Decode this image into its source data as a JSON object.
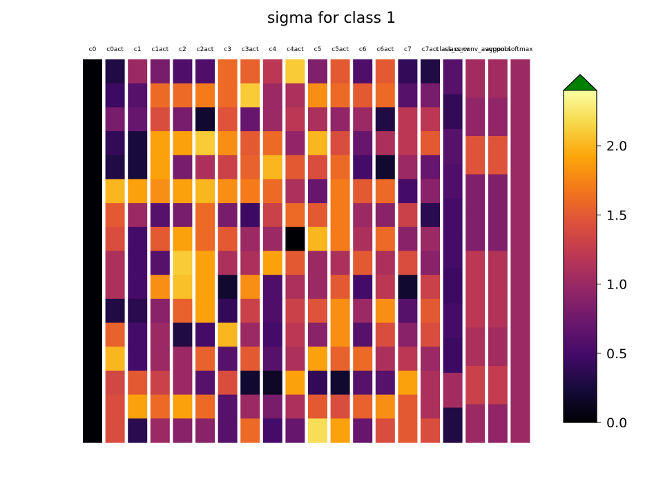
{
  "chart_data": {
    "type": "heatmap",
    "title": "sigma for class 1",
    "colormap": "inferno",
    "clim": [
      0,
      2.4
    ],
    "colorbar": {
      "ticks": [
        0.0,
        0.5,
        1.0,
        1.5,
        2.0
      ],
      "tick_labels": [
        "0.0",
        "0.5",
        "1.0",
        "1.5",
        "2.0"
      ],
      "extend": "max",
      "over_color": "#008000"
    },
    "columns": [
      {
        "label": "c0",
        "values": [
          0,
          0,
          0,
          0,
          0,
          0,
          0,
          0,
          0,
          0,
          0,
          0,
          0,
          0,
          0,
          0
        ]
      },
      {
        "label": "c0act",
        "values": [
          0.3,
          0.45,
          0.8,
          0.4,
          0.3,
          2.0,
          1.5,
          1.4,
          1.1,
          1.1,
          0.3,
          1.55,
          2.0,
          1.35,
          1.4,
          1.4
        ]
      },
      {
        "label": "c1",
        "values": [
          1.0,
          0.6,
          0.7,
          0.25,
          0.25,
          1.9,
          1.0,
          0.5,
          0.5,
          0.5,
          0.35,
          0.5,
          0.5,
          1.5,
          1.9,
          0.35
        ]
      },
      {
        "label": "c1act",
        "values": [
          0.8,
          1.6,
          1.4,
          1.9,
          1.9,
          1.8,
          0.6,
          1.5,
          0.6,
          1.8,
          0.9,
          1.0,
          1.0,
          1.3,
          1.6,
          1.0
        ]
      },
      {
        "label": "c2",
        "values": [
          0.55,
          1.6,
          0.8,
          1.9,
          0.8,
          1.9,
          0.8,
          1.9,
          2.1,
          2.05,
          1.55,
          0.3,
          1.0,
          1.0,
          1.9,
          0.9
        ]
      },
      {
        "label": "c2act",
        "values": [
          0.55,
          1.7,
          0.2,
          2.1,
          1.1,
          2.0,
          1.6,
          1.6,
          1.9,
          1.9,
          1.9,
          0.5,
          1.55,
          0.6,
          1.6,
          0.9
        ]
      },
      {
        "label": "c3",
        "values": [
          1.6,
          1.6,
          1.45,
          1.8,
          1.3,
          1.8,
          0.8,
          1.5,
          1.1,
          0.2,
          0.4,
          2.0,
          0.6,
          1.4,
          0.6,
          0.6
        ]
      },
      {
        "label": "c3act",
        "values": [
          1.55,
          2.1,
          0.7,
          1.5,
          1.55,
          1.7,
          0.45,
          1.0,
          1.1,
          1.8,
          1.3,
          1.0,
          1.5,
          0.2,
          1.0,
          1.6
        ]
      },
      {
        "label": "c4",
        "values": [
          1.2,
          1.0,
          1.0,
          1.6,
          2.0,
          1.6,
          1.3,
          1.0,
          1.9,
          0.55,
          0.55,
          0.5,
          0.6,
          0.15,
          0.8,
          0.5
        ]
      },
      {
        "label": "c4act",
        "values": [
          2.1,
          1.1,
          1.2,
          0.95,
          1.5,
          1.1,
          1.6,
          0.0,
          1.5,
          1.1,
          1.3,
          1.2,
          1.1,
          1.9,
          1.1,
          0.7
        ]
      },
      {
        "label": "c5",
        "values": [
          0.85,
          1.8,
          1.1,
          2.0,
          1.4,
          0.7,
          1.5,
          2.0,
          1.0,
          1.0,
          1.45,
          0.9,
          1.9,
          0.4,
          1.5,
          2.2
        ]
      },
      {
        "label": "c5act",
        "values": [
          1.5,
          1.6,
          0.95,
          1.4,
          1.6,
          1.7,
          1.7,
          1.7,
          1.1,
          1.5,
          1.8,
          1.8,
          1.55,
          0.2,
          1.4,
          1.9
        ]
      },
      {
        "label": "c6",
        "values": [
          0.55,
          1.5,
          1.0,
          0.7,
          0.5,
          1.5,
          1.0,
          1.1,
          1.5,
          0.5,
          1.0,
          0.6,
          1.6,
          0.6,
          1.55,
          0.7
        ]
      },
      {
        "label": "c6act",
        "values": [
          1.5,
          1.6,
          0.3,
          1.1,
          0.2,
          1.6,
          0.9,
          1.6,
          1.1,
          1.2,
          1.8,
          1.4,
          1.1,
          0.6,
          1.8,
          1.4
        ]
      },
      {
        "label": "c7",
        "values": [
          0.4,
          0.6,
          1.2,
          1.2,
          1.0,
          0.5,
          1.3,
          0.9,
          1.4,
          0.2,
          0.6,
          0.9,
          1.2,
          1.9,
          1.5,
          1.5
        ]
      },
      {
        "label": "c7act",
        "values": [
          0.3,
          0.8,
          1.2,
          1.5,
          0.7,
          0.9,
          0.35,
          1.0,
          0.9,
          1.3,
          1.5,
          1.4,
          1.0,
          1.1,
          1.1,
          1.4
        ]
      },
      {
        "label": "class_conv",
        "values": [
          0.6,
          0.4,
          0.6,
          0.55,
          0.5,
          0.5,
          0.45,
          0.5,
          0.45,
          1.05,
          0.3
        ]
      },
      {
        "label": "class_conv_avgpool",
        "values": [
          1.05,
          0.95,
          1.45,
          0.85,
          0.85,
          1.2,
          1.2,
          1.1,
          1.3,
          1.0
        ]
      },
      {
        "label": "avgpool",
        "values": [
          1.05,
          0.95,
          1.45,
          0.85,
          0.85,
          1.15,
          1.15,
          1.05,
          1.25,
          0.95
        ]
      },
      {
        "label": "softmax",
        "values": [
          1.0,
          1.0,
          1.0,
          1.0,
          1.0,
          1.0,
          1.0,
          1.0,
          1.0,
          1.0
        ]
      }
    ]
  }
}
